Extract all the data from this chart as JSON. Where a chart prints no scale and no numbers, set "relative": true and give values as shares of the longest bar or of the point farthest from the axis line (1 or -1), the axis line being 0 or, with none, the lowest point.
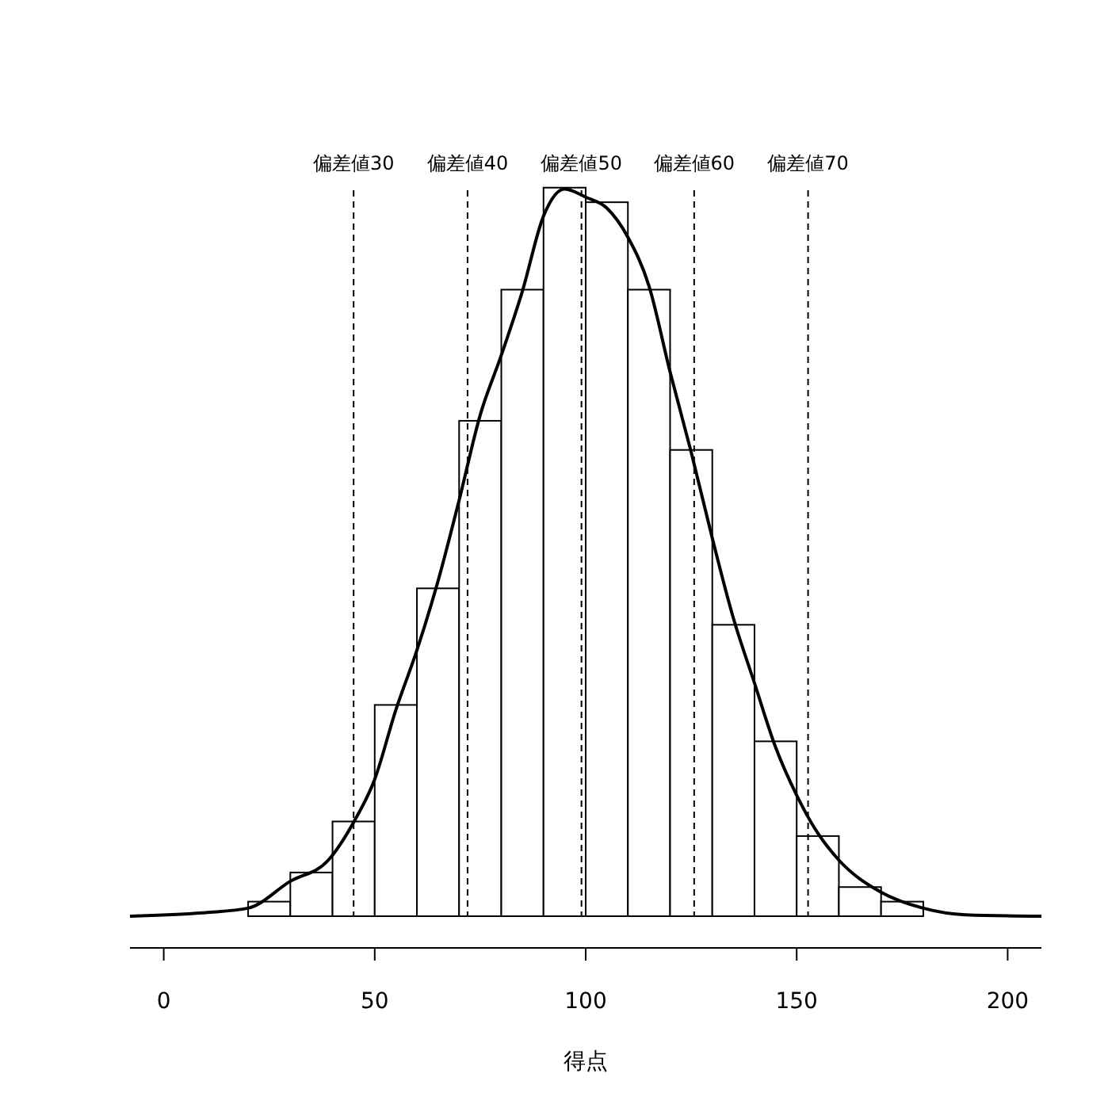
{
  "chart_data": {
    "type": "histogram",
    "relative": true,
    "xlabel": "得点",
    "xlim": [
      -8,
      208
    ],
    "xticks": [
      0,
      50,
      100,
      150,
      200
    ],
    "grid": false,
    "color": "#ffffff",
    "bins": [
      20,
      30,
      40,
      50,
      60,
      70,
      80,
      90,
      100,
      110,
      120,
      130,
      140,
      150,
      160,
      170,
      180
    ],
    "values": [
      0.02,
      0.06,
      0.13,
      0.29,
      0.45,
      0.68,
      0.86,
      1,
      0.98,
      0.86,
      0.64,
      0.4,
      0.24,
      0.11,
      0.04,
      0.02
    ],
    "series": [
      {
        "type": "line",
        "color": "#000000",
        "line_style": "solid",
        "marker": "none",
        "x": [
          -8,
          10,
          20,
          30,
          39,
          45,
          50,
          55,
          60,
          65,
          70,
          75,
          80,
          85,
          90,
          95,
          100,
          105,
          110,
          115,
          120,
          125,
          130,
          135,
          140,
          145,
          150,
          155,
          160,
          170,
          180,
          190,
          208
        ],
        "values": [
          0,
          0.005,
          0.011,
          0.048,
          0.077,
          0.129,
          0.188,
          0.283,
          0.365,
          0.46,
          0.571,
          0.688,
          0.77,
          0.858,
          0.961,
          0.998,
          0.987,
          0.972,
          0.932,
          0.865,
          0.747,
          0.637,
          0.519,
          0.409,
          0.32,
          0.232,
          0.166,
          0.114,
          0.077,
          0.033,
          0.011,
          0.002,
          0
        ]
      }
    ],
    "ref_lines": [
      {
        "axis": "x",
        "value": 45,
        "label": "偏差値30",
        "line_style": "dashed",
        "color": "#000000"
      },
      {
        "axis": "x",
        "value": 72,
        "label": "偏差値40",
        "line_style": "dashed",
        "color": "#000000"
      },
      {
        "axis": "x",
        "value": 99,
        "label": "偏差値50",
        "line_style": "dashed",
        "color": "#000000"
      },
      {
        "axis": "x",
        "value": 125.7,
        "label": "偏差値60",
        "line_style": "dashed",
        "color": "#000000"
      },
      {
        "axis": "x",
        "value": 152.7,
        "label": "偏差値70",
        "line_style": "dashed",
        "color": "#000000"
      }
    ]
  }
}
